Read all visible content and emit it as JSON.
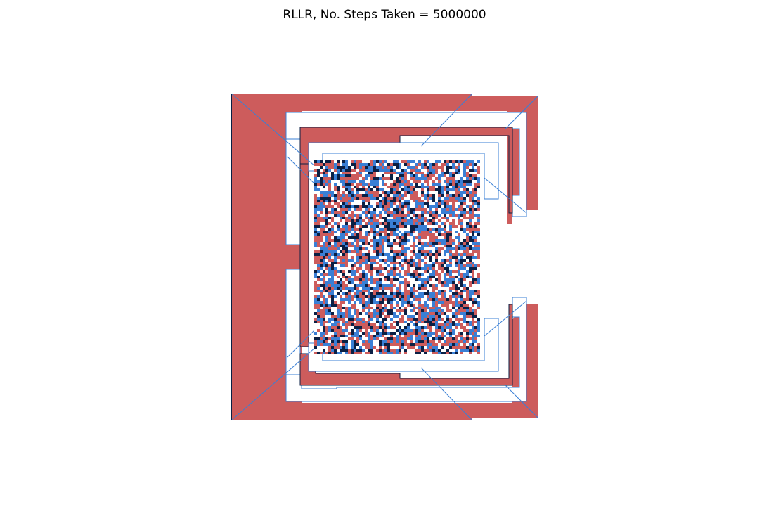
{
  "figure": {
    "title": "RLLR, No. Steps Taken = 5000000"
  },
  "colors": {
    "background": "#ffffff",
    "red_state": "#cd5c5c",
    "blue_state": "#3a7fd5",
    "dark_state": "#0a1f44",
    "white_state": "#ffffff"
  }
}
